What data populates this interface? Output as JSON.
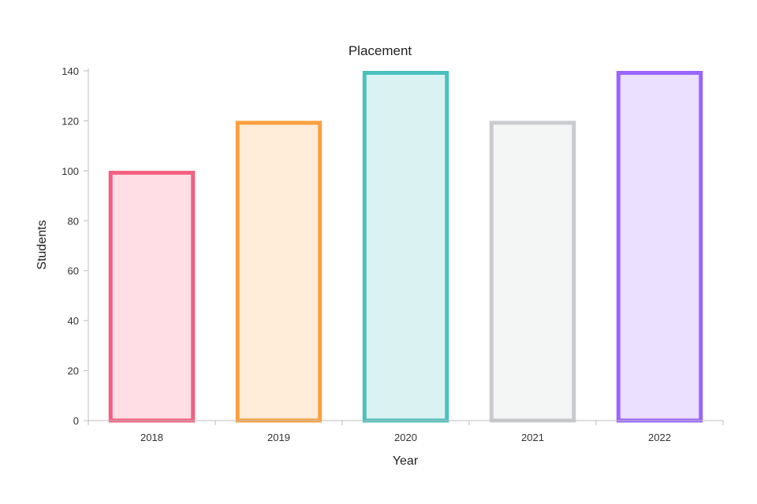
{
  "chart_data": {
    "type": "bar",
    "title": "Placement",
    "xlabel": "Year",
    "ylabel": "Students",
    "categories": [
      "2018",
      "2019",
      "2020",
      "2021",
      "2022"
    ],
    "values": [
      100,
      120,
      140,
      120,
      140
    ],
    "ylim": [
      0,
      140
    ],
    "yticks": [
      0,
      20,
      40,
      60,
      80,
      100,
      120,
      140
    ],
    "grid": false,
    "legend": "none",
    "colors": {
      "stroke": [
        "#f3607f",
        "#fba040",
        "#4bc0c0",
        "#c9cbcf",
        "#9966ff"
      ],
      "fill": [
        "#ffdfe5",
        "#ffecd9",
        "#dbf2f2",
        "#f4f5f5",
        "#ebe0ff"
      ]
    }
  }
}
